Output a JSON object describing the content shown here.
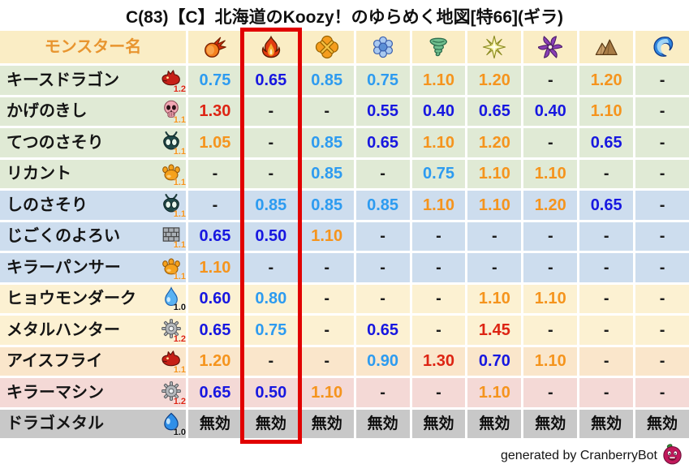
{
  "title": "C(83)【C】北海道のKoozy！のゆらめく地図[特66](ギラ)",
  "chart_data": {
    "type": "table",
    "title": "C(83)【C】北海道のKoozy！のゆらめく地図[特66](ギラ)",
    "columns": [
      "モンスター名",
      "fireball",
      "flame",
      "burst",
      "snowflake",
      "tornado",
      "star",
      "pinwheel",
      "mountain",
      "wave"
    ],
    "highlighted_column": "flame",
    "rows": [
      {
        "name": "キースドラゴン",
        "multiplier": "1.2",
        "values": [
          "0.75",
          "0.65",
          "0.85",
          "0.75",
          "1.10",
          "1.20",
          "-",
          "1.20",
          "-"
        ]
      },
      {
        "name": "かげのきし",
        "multiplier": "1.1",
        "values": [
          "1.30",
          "-",
          "-",
          "0.55",
          "0.40",
          "0.65",
          "0.40",
          "1.10",
          "-"
        ]
      },
      {
        "name": "てつのさそり",
        "multiplier": "1.1",
        "values": [
          "1.05",
          "-",
          "0.85",
          "0.65",
          "1.10",
          "1.20",
          "-",
          "0.65",
          "-"
        ]
      },
      {
        "name": "リカント",
        "multiplier": "1.1",
        "values": [
          "-",
          "-",
          "0.85",
          "-",
          "0.75",
          "1.10",
          "1.10",
          "-",
          "-"
        ]
      },
      {
        "name": "しのさそり",
        "multiplier": "1.1",
        "values": [
          "-",
          "0.85",
          "0.85",
          "0.85",
          "1.10",
          "1.10",
          "1.20",
          "0.65",
          "-"
        ]
      },
      {
        "name": "じごくのよろい",
        "multiplier": "1.1",
        "values": [
          "0.65",
          "0.50",
          "1.10",
          "-",
          "-",
          "-",
          "-",
          "-",
          "-"
        ]
      },
      {
        "name": "キラーパンサー",
        "multiplier": "1.1",
        "values": [
          "1.10",
          "-",
          "-",
          "-",
          "-",
          "-",
          "-",
          "-",
          "-"
        ]
      },
      {
        "name": "ヒョウモンダーク",
        "multiplier": "1.0",
        "values": [
          "0.60",
          "0.80",
          "-",
          "-",
          "-",
          "1.10",
          "1.10",
          "-",
          "-"
        ]
      },
      {
        "name": "メタルハンター",
        "multiplier": "1.2",
        "values": [
          "0.65",
          "0.75",
          "-",
          "0.65",
          "-",
          "1.45",
          "-",
          "-",
          "-"
        ]
      },
      {
        "name": "アイスフライ",
        "multiplier": "1.1",
        "values": [
          "1.20",
          "-",
          "-",
          "0.90",
          "1.30",
          "0.70",
          "1.10",
          "-",
          "-"
        ]
      },
      {
        "name": "キラーマシン",
        "multiplier": "1.2",
        "values": [
          "0.65",
          "0.50",
          "1.10",
          "-",
          "-",
          "1.10",
          "-",
          "-",
          "-"
        ]
      },
      {
        "name": "ドラゴメタル",
        "multiplier": "1.0",
        "values": [
          "無効",
          "無効",
          "無効",
          "無効",
          "無効",
          "無効",
          "無効",
          "無効",
          "無効"
        ]
      }
    ]
  },
  "table": {
    "name_header": "モンスター名",
    "element_columns": [
      {
        "icon": "fireball-icon"
      },
      {
        "icon": "flame-icon",
        "highlighted": true
      },
      {
        "icon": "burst-icon"
      },
      {
        "icon": "snowflake-icon"
      },
      {
        "icon": "tornado-icon"
      },
      {
        "icon": "star-icon"
      },
      {
        "icon": "pinwheel-icon"
      },
      {
        "icon": "mountain-icon"
      },
      {
        "icon": "wave-icon"
      }
    ],
    "rows": [
      {
        "name": "キースドラゴン",
        "family_icon": "dragon-icon",
        "multiplier": "1.2",
        "multiplier_color": "red",
        "band": "green",
        "values": [
          {
            "v": "0.75",
            "c": "light-blue"
          },
          {
            "v": "0.65",
            "c": "dark-blue"
          },
          {
            "v": "0.85",
            "c": "light-blue"
          },
          {
            "v": "0.75",
            "c": "light-blue"
          },
          {
            "v": "1.10",
            "c": "orange"
          },
          {
            "v": "1.20",
            "c": "orange"
          },
          {
            "v": "-",
            "c": "dash"
          },
          {
            "v": "1.20",
            "c": "orange"
          },
          {
            "v": "-",
            "c": "dash"
          }
        ]
      },
      {
        "name": "かげのきし",
        "family_icon": "skull-icon",
        "multiplier": "1.1",
        "multiplier_color": "orange",
        "band": "green",
        "values": [
          {
            "v": "1.30",
            "c": "red"
          },
          {
            "v": "-",
            "c": "dash"
          },
          {
            "v": "-",
            "c": "dash"
          },
          {
            "v": "0.55",
            "c": "dark-blue"
          },
          {
            "v": "0.40",
            "c": "dark-blue"
          },
          {
            "v": "0.65",
            "c": "dark-blue"
          },
          {
            "v": "0.40",
            "c": "dark-blue"
          },
          {
            "v": "1.10",
            "c": "orange"
          },
          {
            "v": "-",
            "c": "dash"
          }
        ]
      },
      {
        "name": "てつのさそり",
        "family_icon": "bug-icon",
        "multiplier": "1.1",
        "multiplier_color": "orange",
        "band": "green",
        "values": [
          {
            "v": "1.05",
            "c": "orange"
          },
          {
            "v": "-",
            "c": "dash"
          },
          {
            "v": "0.85",
            "c": "light-blue"
          },
          {
            "v": "0.65",
            "c": "dark-blue"
          },
          {
            "v": "1.10",
            "c": "orange"
          },
          {
            "v": "1.20",
            "c": "orange"
          },
          {
            "v": "-",
            "c": "dash"
          },
          {
            "v": "0.65",
            "c": "dark-blue"
          },
          {
            "v": "-",
            "c": "dash"
          }
        ]
      },
      {
        "name": "リカント",
        "family_icon": "paw-icon",
        "multiplier": "1.1",
        "multiplier_color": "orange",
        "band": "green",
        "values": [
          {
            "v": "-",
            "c": "dash"
          },
          {
            "v": "-",
            "c": "dash"
          },
          {
            "v": "0.85",
            "c": "light-blue"
          },
          {
            "v": "-",
            "c": "dash"
          },
          {
            "v": "0.75",
            "c": "light-blue"
          },
          {
            "v": "1.10",
            "c": "orange"
          },
          {
            "v": "1.10",
            "c": "orange"
          },
          {
            "v": "-",
            "c": "dash"
          },
          {
            "v": "-",
            "c": "dash"
          }
        ]
      },
      {
        "name": "しのさそり",
        "family_icon": "bug-icon",
        "multiplier": "1.1",
        "multiplier_color": "orange",
        "band": "blue",
        "values": [
          {
            "v": "-",
            "c": "dash"
          },
          {
            "v": "0.85",
            "c": "light-blue"
          },
          {
            "v": "0.85",
            "c": "light-blue"
          },
          {
            "v": "0.85",
            "c": "light-blue"
          },
          {
            "v": "1.10",
            "c": "orange"
          },
          {
            "v": "1.10",
            "c": "orange"
          },
          {
            "v": "1.20",
            "c": "orange"
          },
          {
            "v": "0.65",
            "c": "dark-blue"
          },
          {
            "v": "-",
            "c": "dash"
          }
        ]
      },
      {
        "name": "じごくのよろい",
        "family_icon": "brick-icon",
        "multiplier": "1.1",
        "multiplier_color": "orange",
        "band": "blue",
        "values": [
          {
            "v": "0.65",
            "c": "dark-blue"
          },
          {
            "v": "0.50",
            "c": "dark-blue"
          },
          {
            "v": "1.10",
            "c": "orange"
          },
          {
            "v": "-",
            "c": "dash"
          },
          {
            "v": "-",
            "c": "dash"
          },
          {
            "v": "-",
            "c": "dash"
          },
          {
            "v": "-",
            "c": "dash"
          },
          {
            "v": "-",
            "c": "dash"
          },
          {
            "v": "-",
            "c": "dash"
          }
        ]
      },
      {
        "name": "キラーパンサー",
        "family_icon": "paw-icon",
        "multiplier": "1.1",
        "multiplier_color": "orange",
        "band": "blue",
        "values": [
          {
            "v": "1.10",
            "c": "orange"
          },
          {
            "v": "-",
            "c": "dash"
          },
          {
            "v": "-",
            "c": "dash"
          },
          {
            "v": "-",
            "c": "dash"
          },
          {
            "v": "-",
            "c": "dash"
          },
          {
            "v": "-",
            "c": "dash"
          },
          {
            "v": "-",
            "c": "dash"
          },
          {
            "v": "-",
            "c": "dash"
          },
          {
            "v": "-",
            "c": "dash"
          }
        ]
      },
      {
        "name": "ヒョウモンダーク",
        "family_icon": "drop-icon",
        "multiplier": "1.0",
        "multiplier_color": "black",
        "band": "cream",
        "values": [
          {
            "v": "0.60",
            "c": "dark-blue"
          },
          {
            "v": "0.80",
            "c": "light-blue"
          },
          {
            "v": "-",
            "c": "dash"
          },
          {
            "v": "-",
            "c": "dash"
          },
          {
            "v": "-",
            "c": "dash"
          },
          {
            "v": "1.10",
            "c": "orange"
          },
          {
            "v": "1.10",
            "c": "orange"
          },
          {
            "v": "-",
            "c": "dash"
          },
          {
            "v": "-",
            "c": "dash"
          }
        ]
      },
      {
        "name": "メタルハンター",
        "family_icon": "gear-icon",
        "multiplier": "1.2",
        "multiplier_color": "red",
        "band": "cream",
        "values": [
          {
            "v": "0.65",
            "c": "dark-blue"
          },
          {
            "v": "0.75",
            "c": "light-blue"
          },
          {
            "v": "-",
            "c": "dash"
          },
          {
            "v": "0.65",
            "c": "dark-blue"
          },
          {
            "v": "-",
            "c": "dash"
          },
          {
            "v": "1.45",
            "c": "red"
          },
          {
            "v": "-",
            "c": "dash"
          },
          {
            "v": "-",
            "c": "dash"
          },
          {
            "v": "-",
            "c": "dash"
          }
        ]
      },
      {
        "name": "アイスフライ",
        "family_icon": "dragon-icon",
        "multiplier": "1.1",
        "multiplier_color": "orange",
        "band": "peach",
        "values": [
          {
            "v": "1.20",
            "c": "orange"
          },
          {
            "v": "-",
            "c": "dash"
          },
          {
            "v": "-",
            "c": "dash"
          },
          {
            "v": "0.90",
            "c": "light-blue"
          },
          {
            "v": "1.30",
            "c": "red"
          },
          {
            "v": "0.70",
            "c": "dark-blue"
          },
          {
            "v": "1.10",
            "c": "orange"
          },
          {
            "v": "-",
            "c": "dash"
          },
          {
            "v": "-",
            "c": "dash"
          }
        ]
      },
      {
        "name": "キラーマシン",
        "family_icon": "gear-icon",
        "multiplier": "1.2",
        "multiplier_color": "red",
        "band": "pink",
        "values": [
          {
            "v": "0.65",
            "c": "dark-blue"
          },
          {
            "v": "0.50",
            "c": "dark-blue"
          },
          {
            "v": "1.10",
            "c": "orange"
          },
          {
            "v": "-",
            "c": "dash"
          },
          {
            "v": "-",
            "c": "dash"
          },
          {
            "v": "1.10",
            "c": "orange"
          },
          {
            "v": "-",
            "c": "dash"
          },
          {
            "v": "-",
            "c": "dash"
          },
          {
            "v": "-",
            "c": "dash"
          }
        ]
      },
      {
        "name": "ドラゴメタル",
        "family_icon": "slime-icon",
        "multiplier": "1.0",
        "multiplier_color": "black",
        "band": "gray",
        "values": [
          {
            "v": "無効",
            "c": "nullify"
          },
          {
            "v": "無効",
            "c": "nullify"
          },
          {
            "v": "無効",
            "c": "nullify"
          },
          {
            "v": "無効",
            "c": "nullify"
          },
          {
            "v": "無効",
            "c": "nullify"
          },
          {
            "v": "無効",
            "c": "nullify"
          },
          {
            "v": "無効",
            "c": "nullify"
          },
          {
            "v": "無効",
            "c": "nullify"
          },
          {
            "v": "無効",
            "c": "nullify"
          }
        ]
      }
    ]
  },
  "colors": {
    "bands": {
      "green": "#E0EAD5",
      "blue": "#CDDDEE",
      "cream": "#FCF1D2",
      "peach": "#FAE6CB",
      "pink": "#F4D9D6",
      "gray": "#C8C8C8",
      "header": "#FAEDC5"
    },
    "values": {
      "light-blue": "#2D9BF0",
      "dark-blue": "#1717E0",
      "orange": "#F5941D",
      "red": "#DD2413",
      "dash": "#1D1D1D",
      "nullify": "#0D0D0D"
    },
    "multipliers": {
      "red": "#DD2413",
      "orange": "#F5941D",
      "black": "#111111"
    },
    "name_header_text": "#E8952F",
    "highlight_box": "#E10000"
  },
  "footer": {
    "credit": "generated by CranberryBot",
    "icon": "cranberry-icon"
  }
}
